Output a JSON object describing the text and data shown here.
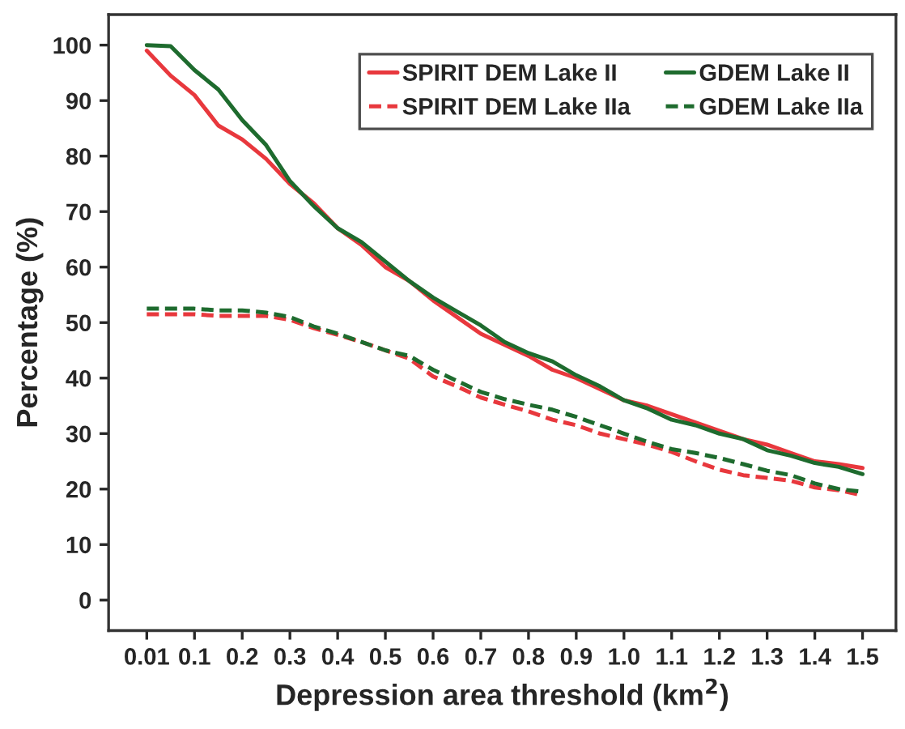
{
  "chart_data": {
    "type": "line",
    "xlabel": "Depression area threshold (km$^{2}$)",
    "ylabel": "Percentage (%)",
    "categories": [
      "0.01",
      null,
      "0.1",
      null,
      "0.2",
      null,
      "0.3",
      null,
      "0.4",
      null,
      "0.5",
      null,
      "0.6",
      null,
      "0.7",
      null,
      "0.8",
      null,
      "0.9",
      null,
      "1.0",
      null,
      "1.1",
      null,
      "1.2",
      null,
      "1.3",
      null,
      "1.4",
      null,
      "1.5"
    ],
    "ylim": [
      -5.5,
      105.5
    ],
    "yticks": [
      0,
      10,
      20,
      30,
      40,
      50,
      60,
      70,
      80,
      90,
      100
    ],
    "grid": false,
    "legend": "top right",
    "marker": "none",
    "series": [
      {
        "name": "SPIRIT DEM Lake II",
        "color": "#e8383d",
        "line_style": "solid",
        "values": [
          99,
          94.5,
          91,
          85.5,
          83,
          79.5,
          75,
          71.5,
          67,
          64,
          60,
          57.5,
          54,
          51,
          48,
          46,
          44,
          41.5,
          40,
          38,
          36,
          35,
          33.5,
          32,
          30.5,
          29,
          28,
          26.5,
          25,
          24.5,
          23.8
        ]
      },
      {
        "name": "SPIRIT DEM Lake IIa",
        "color": "#e8383d",
        "line_style": "dashed",
        "values": [
          51.5,
          51.5,
          51.5,
          51.2,
          51.2,
          51.2,
          50.5,
          49,
          47.8,
          46.5,
          45,
          43.5,
          40.3,
          38.5,
          36.5,
          35.2,
          34,
          32.5,
          31.5,
          30,
          29,
          28,
          26.7,
          25,
          23.5,
          22.5,
          22,
          21.5,
          20.3,
          19.8,
          18.9
        ]
      },
      {
        "name": "GDEM Lake II",
        "color": "#1e6b2e",
        "line_style": "solid",
        "values": [
          100,
          99.8,
          95.5,
          92,
          86.5,
          82,
          75.5,
          71,
          67,
          64.5,
          61,
          57.5,
          54.5,
          52,
          49.5,
          46.5,
          44.5,
          43,
          40.5,
          38.5,
          36,
          34.5,
          32.5,
          31.5,
          30,
          29,
          27,
          26,
          24.7,
          24,
          22.7
        ]
      },
      {
        "name": "GDEM Lake IIa",
        "color": "#1e6b2e",
        "line_style": "dashed",
        "values": [
          52.5,
          52.5,
          52.5,
          52.2,
          52.2,
          51.8,
          51,
          49.3,
          48,
          46.5,
          45,
          44,
          41.5,
          39.5,
          37.5,
          36.2,
          35.2,
          34.3,
          33,
          31.5,
          30,
          28.5,
          27.2,
          26.5,
          25.6,
          24.5,
          23.3,
          22.5,
          21,
          20,
          19.5
        ]
      }
    ]
  }
}
